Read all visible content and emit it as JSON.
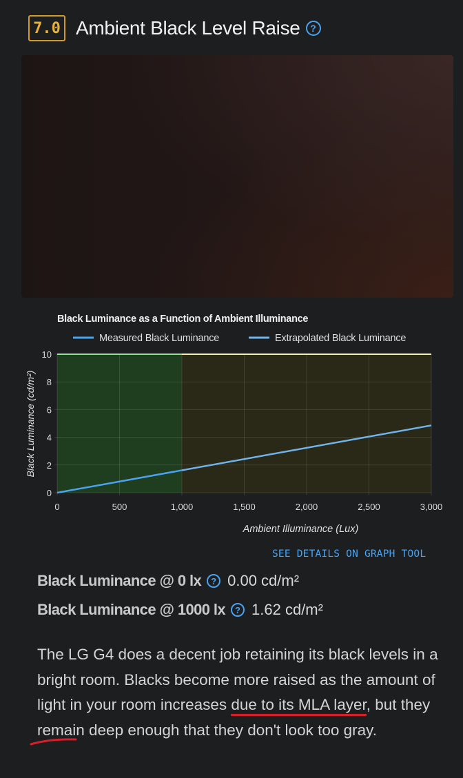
{
  "header": {
    "score": "7.0",
    "title": "Ambient Black Level Raise",
    "help_glyph": "?"
  },
  "chart_data": {
    "type": "line",
    "title": "Black Luminance as a Function of Ambient Illuminance",
    "xlabel": "Ambient Illuminance (Lux)",
    "ylabel": "Black Luminance (cd/m²)",
    "xlim": [
      0,
      3000
    ],
    "ylim": [
      0,
      10
    ],
    "x_ticks": [
      "0",
      "500",
      "1,000",
      "1,500",
      "2,000",
      "2,500",
      "3,000"
    ],
    "y_ticks": [
      "0",
      "2",
      "4",
      "6",
      "8",
      "10"
    ],
    "legend_placement": "top",
    "grid": true,
    "regions": [
      {
        "x_from": 0,
        "x_to": 1000,
        "color": "#1f3d1f"
      },
      {
        "x_from": 1000,
        "x_to": 3000,
        "color": "#2a2816"
      }
    ],
    "series": [
      {
        "name": "Measured Black Luminance",
        "color": "#4aa3f0",
        "x": [
          0,
          1000
        ],
        "y": [
          0,
          1.62
        ]
      },
      {
        "name": "Extrapolated Black Luminance",
        "color": "#6fb4ec",
        "x": [
          1000,
          3000
        ],
        "y": [
          1.62,
          4.86
        ]
      }
    ]
  },
  "links": {
    "see_details": "SEE DETAILS ON GRAPH TOOL"
  },
  "stats": [
    {
      "label": "Black Luminance @ 0 lx",
      "value": "0.00 cd/m²"
    },
    {
      "label": "Black Luminance @ 1000 lx",
      "value": "1.62 cd/m²"
    }
  ],
  "description": {
    "before": "The LG G4 does a decent job retaining its black levels in a bright room. Blacks become more raised as the amount of light in your room increases ",
    "highlight": "due to its MLA layer",
    "after": ", but they remain deep enough that they don't look too gray."
  },
  "colors": {
    "accent": "#4aa3f0",
    "score_border": "#d19a2a",
    "annotation_red": "#d61f2b"
  }
}
